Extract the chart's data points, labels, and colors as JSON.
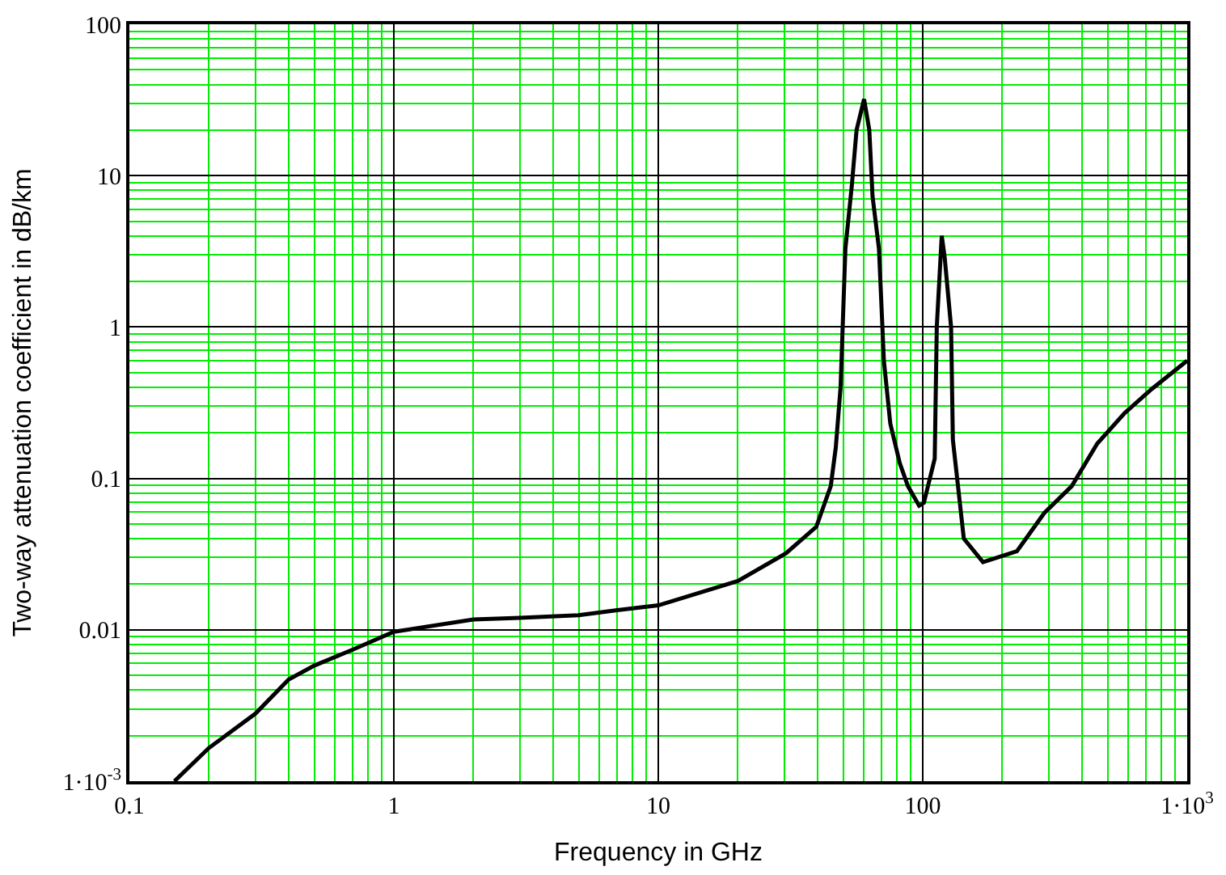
{
  "chart_data": {
    "type": "line",
    "xlabel": "Frequency in GHz",
    "ylabel": "Two-way attenuation coefficient in dB/km",
    "log": "xy",
    "grid": true,
    "marker": "none",
    "line_style": "solid",
    "xlim": [
      0.1,
      1000
    ],
    "ylim": [
      0.001,
      100
    ],
    "xticks": [
      0.1,
      {
        "value": 0.2,
        "label": null
      },
      {
        "value": 0.3,
        "label": null
      },
      {
        "value": 0.4,
        "label": null
      },
      {
        "value": 0.5,
        "label": null
      },
      {
        "value": 0.6,
        "label": null
      },
      {
        "value": 0.7,
        "label": null
      },
      {
        "value": 0.8,
        "label": null
      },
      {
        "value": 0.9,
        "label": null
      },
      1,
      {
        "value": 2,
        "label": null
      },
      {
        "value": 3,
        "label": null
      },
      {
        "value": 4,
        "label": null
      },
      {
        "value": 5,
        "label": null
      },
      {
        "value": 6,
        "label": null
      },
      {
        "value": 7,
        "label": null
      },
      {
        "value": 8,
        "label": null
      },
      {
        "value": 9,
        "label": null
      },
      10,
      {
        "value": 20,
        "label": null
      },
      {
        "value": 30,
        "label": null
      },
      {
        "value": 40,
        "label": null
      },
      {
        "value": 50,
        "label": null
      },
      {
        "value": 60,
        "label": null
      },
      {
        "value": 70,
        "label": null
      },
      {
        "value": 80,
        "label": null
      },
      {
        "value": 90,
        "label": null
      },
      100,
      {
        "value": 200,
        "label": null
      },
      {
        "value": 300,
        "label": null
      },
      {
        "value": 400,
        "label": null
      },
      {
        "value": 500,
        "label": null
      },
      {
        "value": 600,
        "label": null
      },
      {
        "value": 700,
        "label": null
      },
      {
        "value": 800,
        "label": null
      },
      {
        "value": 900,
        "label": null
      },
      {
        "value": 1000,
        "label": "1·10$^{3}$"
      }
    ],
    "yticks": [
      {
        "value": 0.001,
        "label": "1·10$^{-3}$"
      },
      {
        "value": 0.002,
        "label": null
      },
      {
        "value": 0.003,
        "label": null
      },
      {
        "value": 0.004,
        "label": null
      },
      {
        "value": 0.005,
        "label": null
      },
      {
        "value": 0.006,
        "label": null
      },
      {
        "value": 0.007,
        "label": null
      },
      {
        "value": 0.008,
        "label": null
      },
      {
        "value": 0.009,
        "label": null
      },
      0.01,
      {
        "value": 0.02,
        "label": null
      },
      {
        "value": 0.03,
        "label": null
      },
      {
        "value": 0.04,
        "label": null
      },
      {
        "value": 0.05,
        "label": null
      },
      {
        "value": 0.06,
        "label": null
      },
      {
        "value": 0.07,
        "label": null
      },
      {
        "value": 0.08,
        "label": null
      },
      {
        "value": 0.09,
        "label": null
      },
      0.1,
      {
        "value": 0.2,
        "label": null
      },
      {
        "value": 0.3,
        "label": null
      },
      {
        "value": 0.4,
        "label": null
      },
      {
        "value": 0.5,
        "label": null
      },
      {
        "value": 0.6,
        "label": null
      },
      {
        "value": 0.7,
        "label": null
      },
      {
        "value": 0.8,
        "label": null
      },
      {
        "value": 0.9,
        "label": null
      },
      1,
      {
        "value": 2,
        "label": null
      },
      {
        "value": 3,
        "label": null
      },
      {
        "value": 4,
        "label": null
      },
      {
        "value": 5,
        "label": null
      },
      {
        "value": 6,
        "label": null
      },
      {
        "value": 7,
        "label": null
      },
      {
        "value": 8,
        "label": null
      },
      {
        "value": 9,
        "label": null
      },
      10,
      {
        "value": 20,
        "label": null
      },
      {
        "value": 30,
        "label": null
      },
      {
        "value": 40,
        "label": null
      },
      {
        "value": 50,
        "label": null
      },
      {
        "value": 60,
        "label": null
      },
      {
        "value": 70,
        "label": null
      },
      {
        "value": 80,
        "label": null
      },
      {
        "value": 90,
        "label": null
      },
      100
    ],
    "series": [
      {
        "color": "#000000",
        "x": [
          0.148,
          0.2,
          0.3,
          0.4,
          0.5,
          0.7,
          1,
          2,
          3,
          5,
          7,
          10,
          20,
          30.4,
          39.6,
          44.9,
          46.9,
          48.9,
          51,
          53.9,
          56.2,
          60,
          62.8,
          64.6,
          68.3,
          71.3,
          75.4,
          81.9,
          87.9,
          96.9,
          101,
          111,
          113,
          118,
          121,
          128,
          130,
          143,
          169,
          227,
          288,
          366,
          457,
          580,
          735,
          1000
        ],
        "values": [
          0.001,
          0.00166,
          0.0028,
          0.0047,
          0.0058,
          0.0074,
          0.0097,
          0.0117,
          0.012,
          0.0125,
          0.0135,
          0.0145,
          0.021,
          0.032,
          0.048,
          0.089,
          0.16,
          0.4,
          3.3,
          8.5,
          20,
          32,
          20,
          7.3,
          3.3,
          0.6,
          0.23,
          0.126,
          0.089,
          0.066,
          0.069,
          0.135,
          1.0,
          4.0,
          2.9,
          1.0,
          0.18,
          0.04,
          0.028,
          0.033,
          0.059,
          0.089,
          0.17,
          0.27,
          0.39,
          0.6
        ]
      }
    ]
  }
}
